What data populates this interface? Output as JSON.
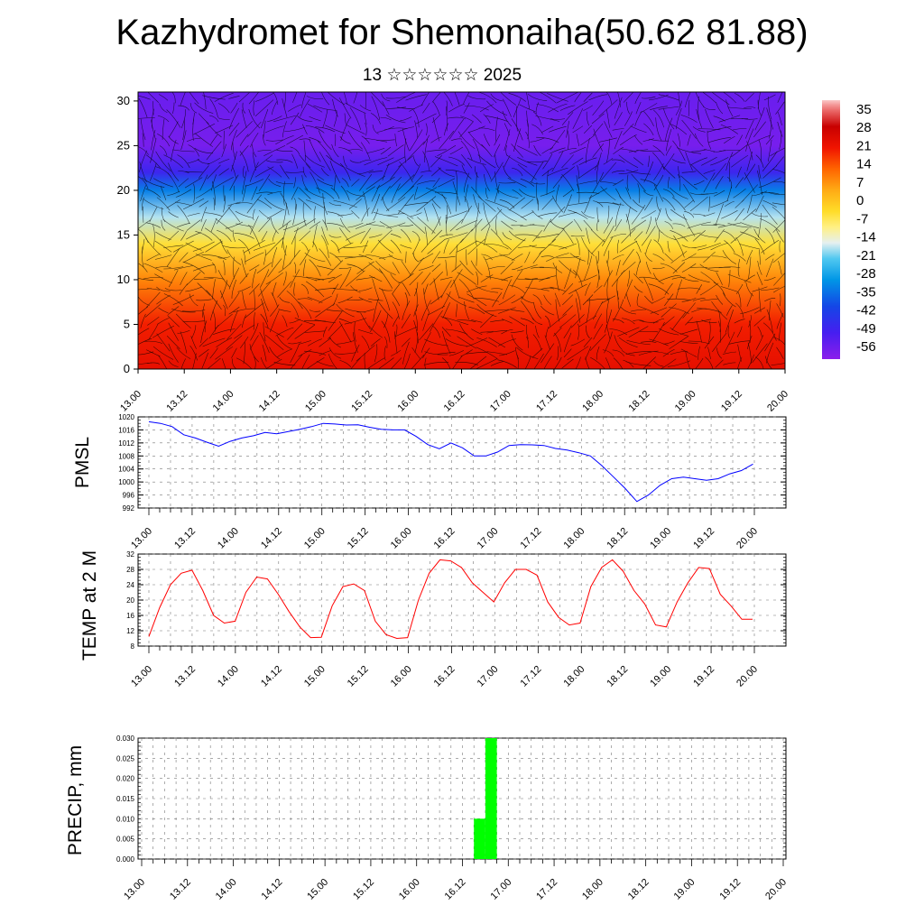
{
  "title": "Kazhydromet for Shemonaiha(50.62 81.88)",
  "subtitle": "13 ☆☆☆☆☆☆ 2025",
  "colors": {
    "pmsl_line": "#0000ff",
    "temp_line": "#ff0000",
    "precip_bar": "#00ff00",
    "grid": "#777777",
    "background": "#ffffff"
  },
  "chart_data": [
    {
      "type": "heatmap",
      "title": "",
      "xlabel": "",
      "ylabel": "",
      "x_ticks": [
        "13.00",
        "13.12",
        "14.00",
        "14.12",
        "15.00",
        "15.12",
        "16.00",
        "16.12",
        "17.00",
        "17.12",
        "18.00",
        "18.12",
        "19.00",
        "19.12",
        "20.00"
      ],
      "y_ticks": [
        0,
        5,
        10,
        15,
        20,
        25,
        30
      ],
      "ylim": [
        0,
        31
      ],
      "overlay": "wind streamlines (black)",
      "colorbar": {
        "labels": [
          "35",
          "28",
          "21",
          "14",
          "7",
          "0",
          "-7",
          "-14",
          "-21",
          "-28",
          "-35",
          "-42",
          "-49",
          "-56"
        ],
        "range": [
          -60,
          38
        ]
      },
      "vertical_profile": [
        {
          "level": 0,
          "value": 22
        },
        {
          "level": 5,
          "value": 19
        },
        {
          "level": 10,
          "value": 8
        },
        {
          "level": 14,
          "value": -5
        },
        {
          "level": 17,
          "value": -18
        },
        {
          "level": 20,
          "value": -33
        },
        {
          "level": 22,
          "value": -48
        },
        {
          "level": 25,
          "value": -57
        },
        {
          "level": 31,
          "value": -55
        }
      ]
    },
    {
      "type": "line",
      "ylabel": "PMSL",
      "ylim": [
        992,
        1020
      ],
      "y_ticks": [
        992,
        996,
        1000,
        1004,
        1008,
        1012,
        1016,
        1020
      ],
      "x_ticks": [
        "13.00",
        "13.12",
        "14.00",
        "14.12",
        "15.00",
        "15.12",
        "16.00",
        "16.12",
        "17.00",
        "17.12",
        "18.00",
        "18.12",
        "19.00",
        "19.12",
        "20.00"
      ],
      "series": [
        {
          "values": [
            1018.5,
            1018.0,
            1017.0,
            1014.5,
            1013.5,
            1012.2,
            1011.0,
            1012.5,
            1013.5,
            1014.2,
            1015.2,
            1014.8,
            1015.5,
            1016.2,
            1017.0,
            1018.0,
            1017.8,
            1017.5,
            1017.6,
            1016.8,
            1016.2,
            1016.0,
            1016.0,
            1014.0,
            1011.5,
            1010.2,
            1012.0,
            1010.5,
            1008.0,
            1008.0,
            1009.2,
            1011.2,
            1011.5,
            1011.4,
            1011.2,
            1010.3,
            1009.8,
            1009.0,
            1008.0,
            1005.0,
            1001.5,
            998.0,
            994.0,
            996.0,
            999.0,
            1001.0,
            1001.5,
            1001.0,
            1000.5,
            1001.0,
            1002.5,
            1003.5,
            1005.5
          ]
        }
      ]
    },
    {
      "type": "line",
      "ylabel": "TEMP at 2 M",
      "ylim": [
        8,
        32
      ],
      "y_ticks": [
        8,
        12,
        16,
        20,
        24,
        28,
        32
      ],
      "x_ticks": [
        "13.00",
        "13.12",
        "14.00",
        "14.12",
        "15.00",
        "15.12",
        "16.00",
        "16.12",
        "17.00",
        "17.12",
        "18.00",
        "18.12",
        "19.00",
        "19.12",
        "20.00"
      ],
      "series": [
        {
          "values": [
            10.5,
            18.0,
            24.0,
            27.0,
            27.8,
            22.5,
            16.0,
            14.0,
            14.5,
            22.0,
            26.0,
            25.5,
            21.5,
            17.0,
            13.0,
            10.2,
            10.3,
            18.5,
            23.5,
            24.2,
            22.5,
            14.5,
            11.0,
            10.0,
            10.2,
            20.0,
            27.0,
            30.5,
            30.2,
            28.5,
            24.5,
            22.0,
            19.5,
            24.5,
            28.0,
            28.0,
            26.5,
            19.5,
            15.5,
            13.5,
            14.0,
            23.5,
            28.5,
            30.5,
            27.5,
            22.5,
            19.0,
            13.5,
            13.0,
            19.5,
            24.5,
            28.5,
            28.2,
            21.5,
            18.5,
            15.0,
            15.0
          ]
        }
      ]
    },
    {
      "type": "bar",
      "ylabel": "PRECIP, mm",
      "ylim": [
        0,
        0.03
      ],
      "y_ticks": [
        "0.000",
        "0.005",
        "0.010",
        "0.015",
        "0.020",
        "0.025",
        "0.030"
      ],
      "x_ticks": [
        "13.00",
        "13.12",
        "14.00",
        "14.12",
        "15.00",
        "15.12",
        "16.00",
        "16.12",
        "17.00",
        "17.12",
        "18.00",
        "18.12",
        "19.00",
        "19.12",
        "20.00"
      ],
      "bars": [
        {
          "start_hour": 87,
          "end_hour": 90,
          "value": 0.01
        },
        {
          "start_hour": 90,
          "end_hour": 93,
          "value": 0.03
        }
      ]
    }
  ]
}
